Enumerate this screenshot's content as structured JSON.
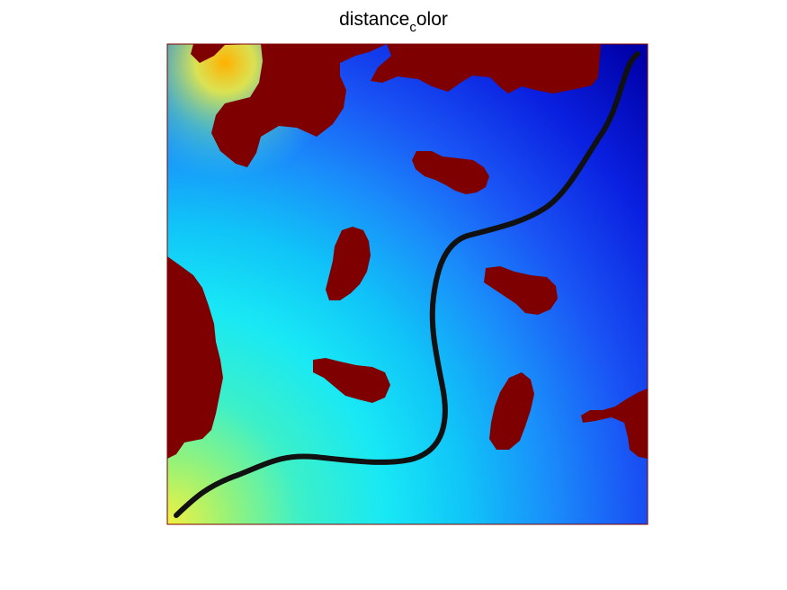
{
  "chart_data": {
    "type": "heatmap",
    "title_main": "distance",
    "title_sub": "c",
    "title_rest": "olor",
    "colormap": "jet",
    "colors": {
      "obstacle": "#7f0000",
      "path": "#111111"
    },
    "axes_visible": false,
    "grid": false,
    "legend": "none"
  }
}
